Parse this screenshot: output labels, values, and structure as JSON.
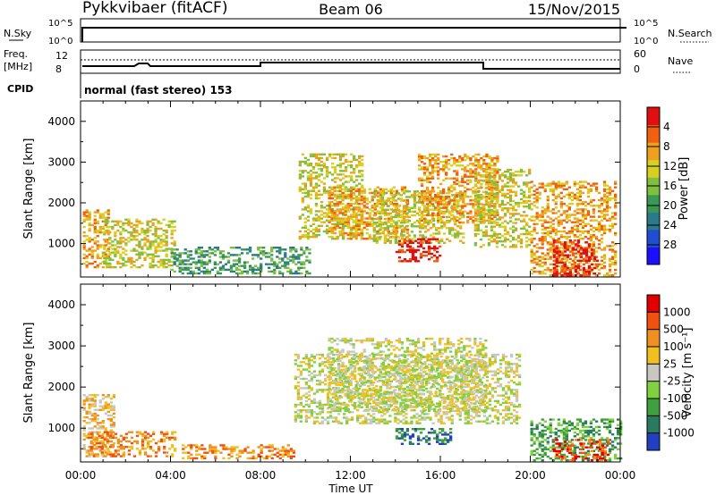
{
  "header": {
    "station": "Pykkvibaer (fitACF)",
    "beam": "Beam 06",
    "date": "15/Nov/2015"
  },
  "top_panels": {
    "nsky_label": "N.Sky",
    "nsky_ticks": [
      "10^5",
      "10^0"
    ],
    "nsearch_label": "N.Search",
    "nsearch_ticks": [
      "10^5",
      "10^0"
    ],
    "freq_label": "Freq.",
    "freq_unit": "[MHz]",
    "freq_ticks": [
      "12",
      "8"
    ],
    "nave_label": "Nave",
    "nave_ticks": [
      "60",
      "0"
    ],
    "cpid_label": "CPID",
    "cpid_text": "normal (fast stereo) 153"
  },
  "x_axis": {
    "label": "Time UT",
    "ticks": [
      "00:00",
      "04:00",
      "08:00",
      "12:00",
      "16:00",
      "20:00",
      "00:00"
    ]
  },
  "chart_data": [
    {
      "type": "heatmap",
      "parameter": "Power",
      "ylabel": "Slant Range [km]",
      "xlabel": "Time UT",
      "ylim": [
        180,
        4500
      ],
      "xlim_hours": [
        0,
        24
      ],
      "y_ticks": [
        1000,
        2000,
        3000,
        4000
      ],
      "colorbar": {
        "label": "Power [dB]",
        "ticks": [
          "4",
          "8",
          "12",
          "16",
          "20",
          "24",
          "28"
        ],
        "colors": [
          "#1a10ff",
          "#1f4fd0",
          "#2a7a8a",
          "#3a9a55",
          "#80c040",
          "#d8d020",
          "#f0a020",
          "#f06010",
          "#e01010"
        ]
      },
      "regions": [
        {
          "t0": 0.1,
          "t1": 1.2,
          "r0": 400,
          "r1": 1800,
          "level": 6
        },
        {
          "t0": 1.0,
          "t1": 4.2,
          "r0": 400,
          "r1": 1600,
          "level": 5
        },
        {
          "t0": 4.0,
          "t1": 10.2,
          "r0": 250,
          "r1": 900,
          "level": 3
        },
        {
          "t0": 9.7,
          "t1": 12.5,
          "r0": 1100,
          "r1": 3200,
          "level": 5
        },
        {
          "t0": 11.0,
          "t1": 14.5,
          "r0": 1100,
          "r1": 2400,
          "level": 6
        },
        {
          "t0": 13.0,
          "t1": 17.0,
          "r0": 1000,
          "r1": 2300,
          "level": 5
        },
        {
          "t0": 14.0,
          "t1": 16.0,
          "r0": 550,
          "r1": 1100,
          "level": 8
        },
        {
          "t0": 15.0,
          "t1": 18.5,
          "r0": 1500,
          "r1": 3200,
          "level": 6
        },
        {
          "t0": 17.5,
          "t1": 20.0,
          "r0": 900,
          "r1": 2800,
          "level": 5
        },
        {
          "t0": 20.0,
          "t1": 23.8,
          "r0": 200,
          "r1": 2500,
          "level": 6
        },
        {
          "t0": 21.0,
          "t1": 23.0,
          "r0": 200,
          "r1": 1100,
          "level": 8
        }
      ]
    },
    {
      "type": "heatmap",
      "parameter": "Velocity",
      "ylabel": "Slant Range [km]",
      "xlabel": "Time UT",
      "ylim": [
        180,
        4500
      ],
      "xlim_hours": [
        0,
        24
      ],
      "y_ticks": [
        1000,
        2000,
        3000,
        4000
      ],
      "colorbar": {
        "label": "Velocity [m s⁻¹]",
        "ticks": [
          "1000",
          "500",
          "100",
          "25",
          "-25",
          "-100",
          "-500",
          "-1000"
        ],
        "colors": [
          "#2040c0",
          "#2a7a60",
          "#40a040",
          "#80d040",
          "#c8c8c0",
          "#f0c020",
          "#f09020",
          "#f05010",
          "#e00000"
        ]
      },
      "regions": [
        {
          "t0": 0.1,
          "t1": 1.5,
          "r0": 300,
          "r1": 1800,
          "level": 5
        },
        {
          "t0": 0.3,
          "t1": 4.2,
          "r0": 300,
          "r1": 900,
          "level": 6
        },
        {
          "t0": 4.5,
          "t1": 9.5,
          "r0": 250,
          "r1": 600,
          "level": 6
        },
        {
          "t0": 9.5,
          "t1": 19.5,
          "r0": 1100,
          "r1": 2800,
          "level": 4
        },
        {
          "t0": 11.0,
          "t1": 18.0,
          "r0": 1400,
          "r1": 3200,
          "level": 4
        },
        {
          "t0": 14.0,
          "t1": 16.5,
          "r0": 600,
          "r1": 1000,
          "level": 1
        },
        {
          "t0": 20.0,
          "t1": 24.0,
          "r0": 200,
          "r1": 1200,
          "level": 2
        },
        {
          "t0": 21.0,
          "t1": 23.5,
          "r0": 200,
          "r1": 700,
          "level": 7
        }
      ]
    }
  ]
}
